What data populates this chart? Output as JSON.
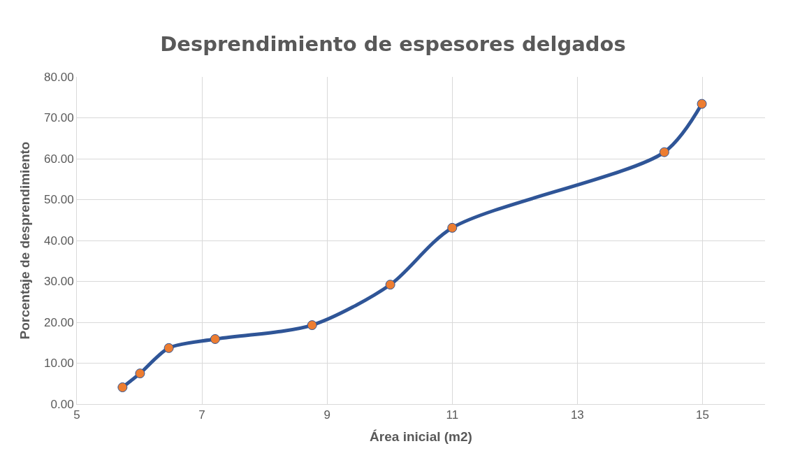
{
  "chart_data": {
    "type": "line",
    "title": "Desprendimiento de espesores delgados",
    "xlabel": "Área inicial (m2)",
    "ylabel": "Porcentaje de desprendimiento",
    "x": [
      5.73,
      6.01,
      6.47,
      7.21,
      8.76,
      10.01,
      11.0,
      14.39,
      14.99
    ],
    "series": [
      {
        "color": "#2f5597",
        "colors": [
          "#ed7d31",
          "#ed7d31",
          "#ed7d31",
          "#ed7d31",
          "#ed7d31",
          "#ed7d31",
          "#ed7d31",
          "#ed7d31",
          "#ed7d31"
        ],
        "values": [
          4.1,
          7.5,
          13.7,
          15.9,
          19.3,
          29.2,
          43.1,
          61.6,
          73.4
        ]
      }
    ],
    "xlim": [
      5,
      16
    ],
    "xticks": [
      5,
      7,
      9,
      11,
      13,
      15
    ],
    "ylim": [
      0,
      80
    ],
    "yticks": [
      {
        "value": 0,
        "label": "0.00"
      },
      {
        "value": 10,
        "label": "10.00"
      },
      {
        "value": 20,
        "label": "20.00"
      },
      {
        "value": 30,
        "label": "30.00"
      },
      {
        "value": 40,
        "label": "40.00"
      },
      {
        "value": 50,
        "label": "50.00"
      },
      {
        "value": 60,
        "label": "60.00"
      },
      {
        "value": 70,
        "label": "70.00"
      },
      {
        "value": 80,
        "label": "80.00"
      }
    ],
    "grid": true,
    "marker": "circle",
    "line_style": "solid"
  }
}
